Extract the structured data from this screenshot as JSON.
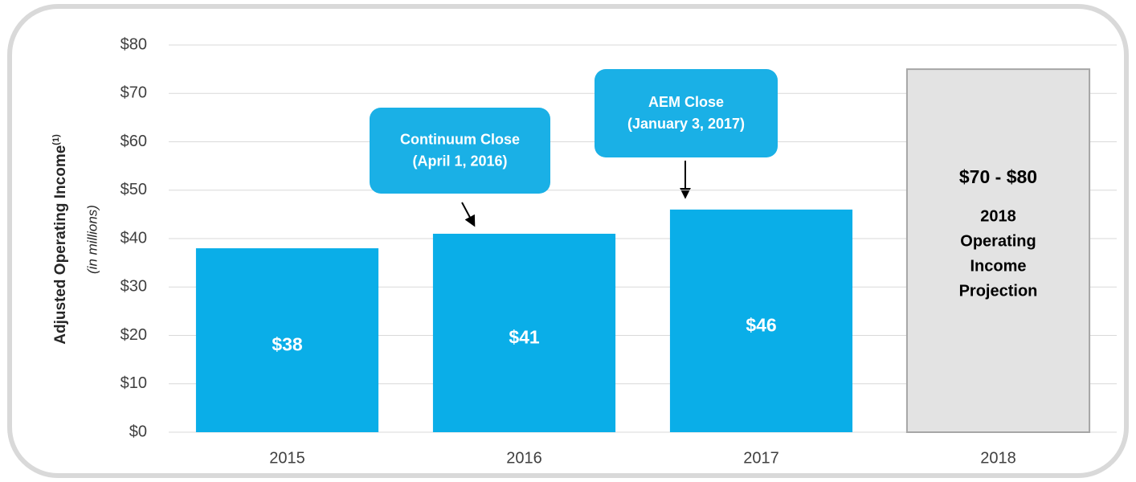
{
  "chart_data": {
    "type": "bar",
    "y_axis_label": "Adjusted Operating Income",
    "y_axis_label_note": "(1)",
    "y_axis_subtitle": "(in millions)",
    "categories": [
      "2015",
      "2016",
      "2017",
      "2018"
    ],
    "values": [
      38,
      41,
      46,
      75
    ],
    "value_labels": [
      "$38",
      "$41",
      "$46",
      "$70 - $80"
    ],
    "colors": [
      "#0aaee8",
      "#0aaee8",
      "#0aaee8",
      "#e3e3e3"
    ],
    "projection_note": [
      "2018",
      "Operating",
      "Income",
      "Projection"
    ],
    "annotations": [
      {
        "lines": [
          "Continuum Close",
          "(April 1, 2016)"
        ]
      },
      {
        "lines": [
          "AEM Close",
          "(January 3, 2017)"
        ]
      }
    ],
    "ylim": [
      0,
      80
    ],
    "yticks": [
      {
        "value": 0,
        "label": "$0"
      },
      {
        "value": 10,
        "label": "$10"
      },
      {
        "value": 20,
        "label": "$20"
      },
      {
        "value": 30,
        "label": "$30"
      },
      {
        "value": 40,
        "label": "$40"
      },
      {
        "value": 50,
        "label": "$50"
      },
      {
        "value": 60,
        "label": "$60"
      },
      {
        "value": 70,
        "label": "$70"
      },
      {
        "value": 80,
        "label": "$80"
      }
    ],
    "grid": true
  }
}
